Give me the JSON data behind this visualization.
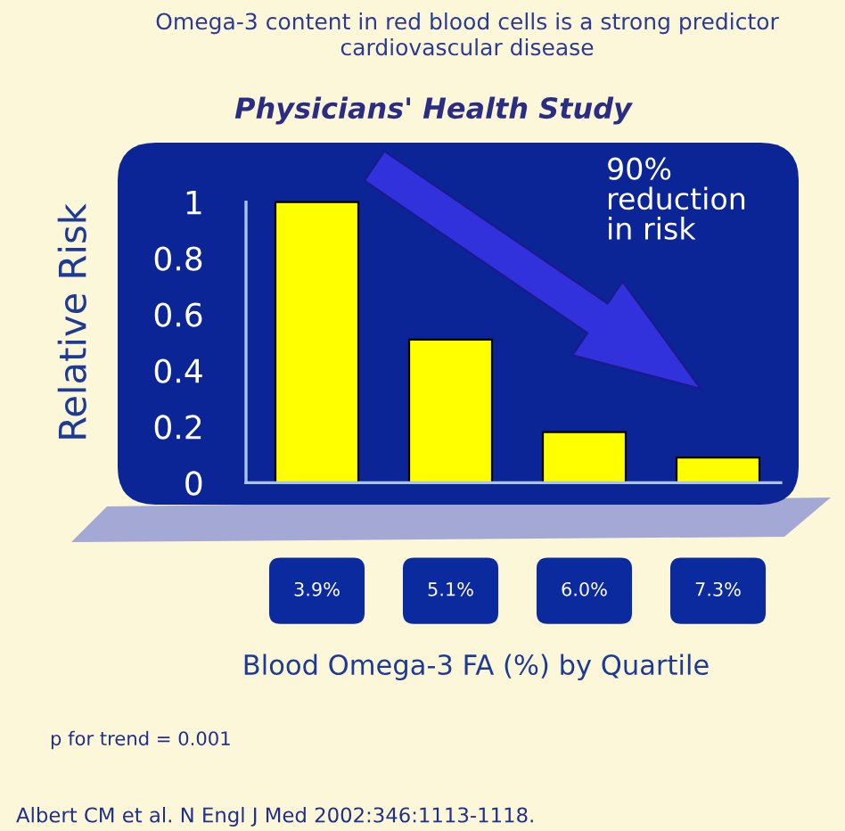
{
  "chart_data": {
    "type": "bar",
    "title": "Physicians' Health Study",
    "subtitle": "Omega-3 content in red blood cells is a strong predictor cardiovascular disease",
    "xlabel": "Blood Omega-3 FA (%) by Quartile",
    "ylabel": "Relative Risk",
    "categories": [
      "3.9%",
      "5.1%",
      "6.0%",
      "7.3%"
    ],
    "values": [
      1.0,
      0.51,
      0.18,
      0.09
    ],
    "color": "#ffff00",
    "ylim": [
      0,
      1
    ],
    "yticks": [
      0,
      0.2,
      0.4,
      0.6,
      0.8,
      1
    ],
    "annotations": [
      "90%\nreduction\nin risk",
      "p for trend = 0.001",
      "Albert CM et al. N Engl J Med 2002:346:1113-1118."
    ]
  }
}
